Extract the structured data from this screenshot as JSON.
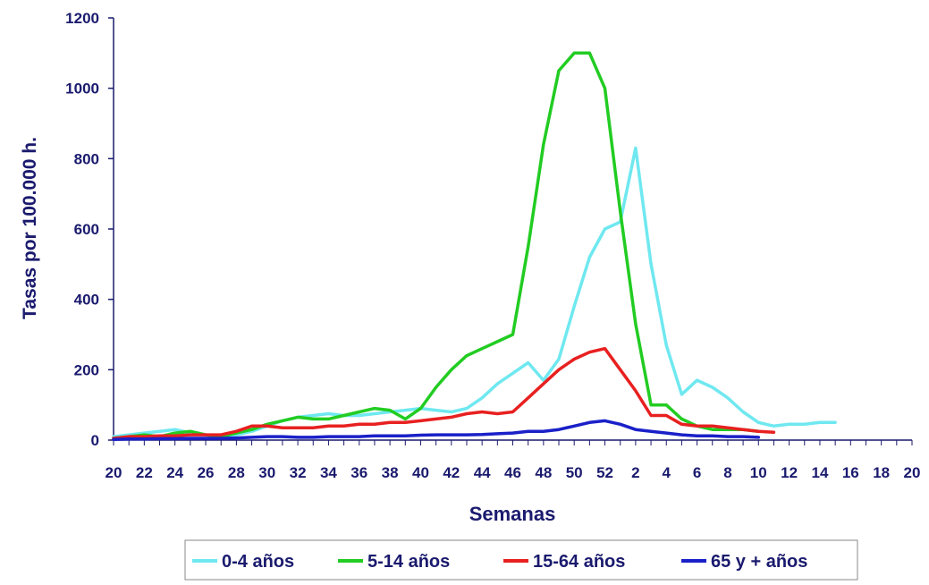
{
  "chart_data": {
    "type": "line",
    "xlabel": "Semanas",
    "ylabel": "Tasas por 100.000 h.",
    "ylim": [
      0,
      1200
    ],
    "yticks": [
      "0",
      "200",
      "400",
      "600",
      "800",
      "1000",
      "1200"
    ],
    "xticks": [
      "20",
      "22",
      "24",
      "26",
      "28",
      "30",
      "32",
      "34",
      "36",
      "38",
      "40",
      "42",
      "44",
      "46",
      "48",
      "50",
      "52",
      "2",
      "4",
      "6",
      "8",
      "10",
      "12",
      "14",
      "16",
      "18",
      "20"
    ],
    "x_count": 53,
    "legend_position": "bottom",
    "grid": false,
    "series": [
      {
        "name": "0-4 años",
        "color": "#6fe8f0",
        "values": [
          10,
          15,
          20,
          25,
          30,
          20,
          15,
          10,
          15,
          25,
          40,
          55,
          65,
          70,
          75,
          70,
          70,
          75,
          80,
          85,
          90,
          85,
          80,
          90,
          120,
          160,
          190,
          220,
          170,
          230,
          380,
          520,
          600,
          620,
          830,
          500,
          270,
          130,
          170,
          150,
          120,
          80,
          50,
          40,
          45,
          45,
          50,
          50
        ]
      },
      {
        "name": "5-14 años",
        "color": "#22cc22",
        "values": [
          5,
          10,
          15,
          10,
          20,
          25,
          15,
          10,
          20,
          30,
          45,
          55,
          65,
          60,
          60,
          70,
          80,
          90,
          85,
          60,
          90,
          150,
          200,
          240,
          260,
          280,
          300,
          550,
          840,
          1050,
          1100,
          1100,
          1000,
          650,
          330,
          100,
          100,
          60,
          40,
          30,
          30,
          30,
          25
        ]
      },
      {
        "name": "15-64 años",
        "color": "#e82020",
        "values": [
          5,
          10,
          10,
          12,
          12,
          15,
          15,
          15,
          25,
          40,
          40,
          35,
          35,
          35,
          40,
          40,
          45,
          45,
          50,
          50,
          55,
          60,
          65,
          75,
          80,
          75,
          80,
          120,
          160,
          200,
          230,
          250,
          260,
          200,
          140,
          70,
          70,
          45,
          40,
          40,
          35,
          30,
          25,
          22
        ]
      },
      {
        "name": "65 y + años",
        "color": "#1a20c8",
        "values": [
          2,
          3,
          3,
          4,
          4,
          5,
          5,
          5,
          6,
          8,
          10,
          10,
          8,
          8,
          10,
          10,
          10,
          12,
          12,
          12,
          14,
          15,
          15,
          15,
          16,
          18,
          20,
          25,
          25,
          30,
          40,
          50,
          55,
          45,
          30,
          25,
          20,
          15,
          12,
          12,
          10,
          10,
          8
        ]
      }
    ]
  }
}
